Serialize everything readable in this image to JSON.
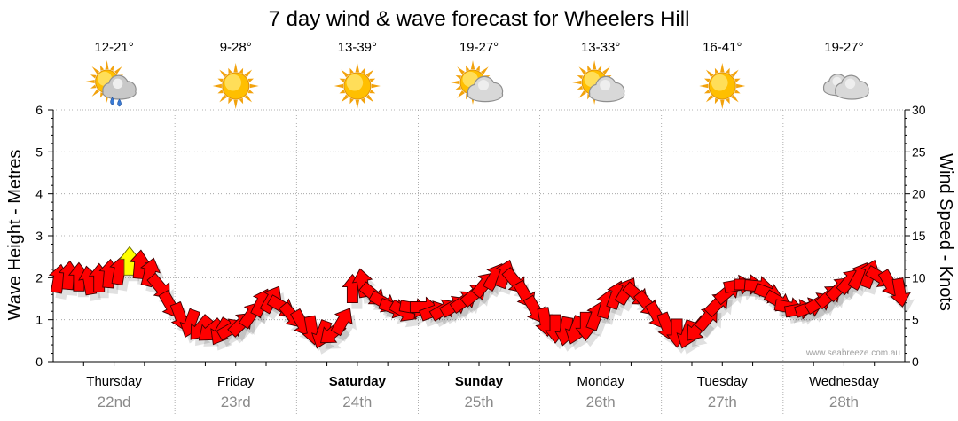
{
  "watermark": "www.seabreeze.com.au",
  "chart_data": {
    "type": "scatter",
    "title": "7 day wind & wave forecast for Wheelers Hill",
    "ylabel_left": "Wave Height - Metres",
    "ylabel_right": "Wind Speed - Knots",
    "ylim_left": [
      0,
      6
    ],
    "ylim_right": [
      0,
      30
    ],
    "yticks_left": [
      0,
      1,
      2,
      3,
      4,
      5,
      6
    ],
    "yticks_right": [
      0,
      5,
      10,
      15,
      20,
      25,
      30
    ],
    "grid": true,
    "categories": [
      {
        "day": "Thursday",
        "date": "22nd",
        "temp": "12-21°",
        "icon": "showers",
        "emphasis": false
      },
      {
        "day": "Friday",
        "date": "23rd",
        "temp": "9-28°",
        "icon": "sunny",
        "emphasis": false
      },
      {
        "day": "Saturday",
        "date": "24th",
        "temp": "13-39°",
        "icon": "sunny",
        "emphasis": true
      },
      {
        "day": "Sunday",
        "date": "25th",
        "temp": "19-27°",
        "icon": "partly-cloudy",
        "emphasis": true
      },
      {
        "day": "Monday",
        "date": "26th",
        "temp": "13-33°",
        "icon": "partly-cloudy",
        "emphasis": false
      },
      {
        "day": "Tuesday",
        "date": "27th",
        "temp": "16-41°",
        "icon": "sunny",
        "emphasis": false
      },
      {
        "day": "Wednesday",
        "date": "28th",
        "temp": "19-27°",
        "icon": "cloudy",
        "emphasis": false
      }
    ],
    "sample_hours": [
      0,
      2,
      4,
      6,
      8,
      10,
      12,
      14,
      16,
      18,
      20,
      22
    ],
    "series": [
      {
        "color": "#ff0000",
        "values": [
          [
            9.8,
            10.2,
            10.0,
            9.6,
            9.9,
            10.4,
            10.8,
            11.9,
            11.5,
            10.6,
            8.9,
            6.8
          ],
          [
            5.4,
            4.6,
            4.0,
            3.7,
            3.6,
            3.9,
            4.5,
            5.6,
            7.0,
            7.4,
            6.6,
            5.5
          ],
          [
            4.6,
            3.8,
            3.3,
            3.4,
            4.8,
            8.6,
            9.3,
            8.0,
            7.1,
            6.4,
            6.0,
            6.4
          ],
          [
            6.5,
            6.0,
            6.2,
            6.6,
            7.2,
            8.0,
            9.2,
            10.1,
            10.4,
            9.6,
            8.0,
            6.2
          ],
          [
            4.8,
            4.0,
            3.7,
            3.8,
            4.3,
            5.4,
            6.8,
            7.9,
            8.4,
            8.0,
            6.9,
            5.5
          ],
          [
            4.2,
            3.5,
            3.3,
            3.9,
            5.2,
            6.9,
            8.3,
            9.1,
            9.2,
            9.0,
            8.2,
            7.2
          ],
          [
            6.5,
            6.2,
            6.4,
            7.0,
            7.8,
            8.7,
            9.6,
            10.2,
            10.4,
            10.1,
            9.3,
            8.3
          ]
        ],
        "direction_deg": [
          [
            10,
            5,
            0,
            350,
            0,
            5,
            10,
            0,
            5,
            15,
            140,
            150
          ],
          [
            160,
            200,
            220,
            230,
            210,
            60,
            45,
            35,
            25,
            30,
            120,
            140
          ],
          [
            150,
            170,
            200,
            230,
            30,
            0,
            350,
            130,
            120,
            110,
            120,
            100
          ],
          [
            90,
            70,
            60,
            60,
            55,
            50,
            40,
            30,
            20,
            140,
            150,
            150
          ],
          [
            170,
            180,
            190,
            200,
            180,
            20,
            15,
            20,
            30,
            130,
            140,
            150
          ],
          [
            160,
            180,
            200,
            220,
            40,
            45,
            50,
            80,
            90,
            95,
            110,
            120
          ],
          [
            100,
            80,
            70,
            60,
            50,
            45,
            40,
            30,
            20,
            120,
            150,
            170
          ]
        ]
      }
    ],
    "current": {
      "category": 0,
      "hour": 14,
      "color": "#ffff00"
    }
  }
}
